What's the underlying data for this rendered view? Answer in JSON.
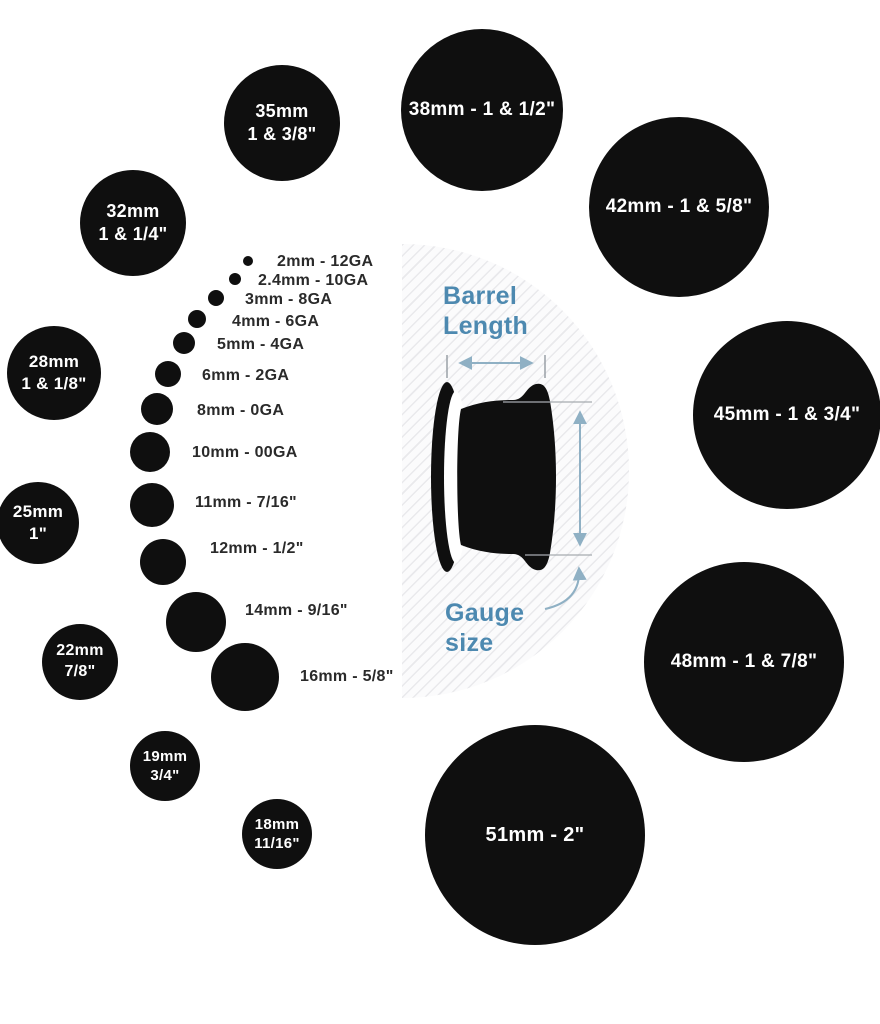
{
  "diagram": {
    "title": "plug gauge size chart",
    "colors": {
      "circle": "#0f0f0f",
      "label_text": "#2a2a2a",
      "accent_blue": "#4d89b0",
      "arrow_blue": "#8fb0c4",
      "measure_line": "#a6abb0",
      "hatch_line": "#e9e9ec"
    },
    "center": {
      "barrel_label": [
        "Barrel",
        "Length"
      ],
      "gauge_label": [
        "Gauge",
        "size"
      ]
    },
    "dot_items": [
      {
        "label": "2mm - 12GA",
        "dot": [
          248,
          261,
          5
        ],
        "text": [
          277,
          262
        ]
      },
      {
        "label": "2.4mm - 10GA",
        "dot": [
          235,
          279,
          6
        ],
        "text": [
          258,
          281
        ]
      },
      {
        "label": "3mm - 8GA",
        "dot": [
          216,
          298,
          8
        ],
        "text": [
          245,
          300
        ]
      },
      {
        "label": "4mm - 6GA",
        "dot": [
          197,
          319,
          9
        ],
        "text": [
          232,
          322
        ]
      },
      {
        "label": "5mm - 4GA",
        "dot": [
          184,
          343,
          11
        ],
        "text": [
          217,
          345
        ]
      },
      {
        "label": "6mm - 2GA",
        "dot": [
          168,
          374,
          13
        ],
        "text": [
          202,
          376
        ]
      },
      {
        "label": "8mm - 0GA",
        "dot": [
          157,
          409,
          16
        ],
        "text": [
          197,
          411
        ]
      },
      {
        "label": "10mm - 00GA",
        "dot": [
          150,
          452,
          20
        ],
        "text": [
          192,
          453
        ]
      },
      {
        "label": "11mm - 7/16\"",
        "dot": [
          152,
          505,
          22
        ],
        "text": [
          195,
          503
        ]
      },
      {
        "label": "12mm - 1/2\"",
        "dot": [
          163,
          562,
          23
        ],
        "text": [
          210,
          549
        ]
      },
      {
        "label": "14mm - 9/16\"",
        "dot": [
          196,
          622,
          30
        ],
        "text": [
          245,
          611
        ]
      },
      {
        "label": "16mm - 5/8\"",
        "dot": [
          245,
          677,
          34
        ],
        "text": [
          300,
          677
        ]
      }
    ],
    "circle_items": [
      {
        "id": "35mm",
        "lines": [
          "35mm",
          "1 & 3/8\""
        ],
        "c": [
          282,
          123,
          58
        ],
        "fs": 18
      },
      {
        "id": "38mm",
        "lines": [
          "38mm - 1 & 1/2\""
        ],
        "c": [
          482,
          110,
          81
        ],
        "fs": 19
      },
      {
        "id": "32mm",
        "lines": [
          "32mm",
          "1 & 1/4\""
        ],
        "c": [
          133,
          223,
          53
        ],
        "fs": 18
      },
      {
        "id": "42mm",
        "lines": [
          "42mm - 1 & 5/8\""
        ],
        "c": [
          679,
          207,
          90
        ],
        "fs": 19
      },
      {
        "id": "28mm",
        "lines": [
          "28mm",
          "1 & 1/8\""
        ],
        "c": [
          54,
          373,
          47
        ],
        "fs": 17
      },
      {
        "id": "45mm",
        "lines": [
          "45mm - 1 & 3/4\""
        ],
        "c": [
          787,
          415,
          94
        ],
        "fs": 19
      },
      {
        "id": "25mm",
        "lines": [
          "25mm",
          "1\""
        ],
        "c": [
          38,
          523,
          41
        ],
        "fs": 17
      },
      {
        "id": "48mm",
        "lines": [
          "48mm - 1 & 7/8\""
        ],
        "c": [
          744,
          662,
          100
        ],
        "fs": 19
      },
      {
        "id": "22mm",
        "lines": [
          "22mm",
          "7/8\""
        ],
        "c": [
          80,
          662,
          38
        ],
        "fs": 16
      },
      {
        "id": "19mm",
        "lines": [
          "19mm",
          "3/4\""
        ],
        "c": [
          165,
          766,
          35
        ],
        "fs": 15
      },
      {
        "id": "18mm",
        "lines": [
          "18mm",
          "11/16\""
        ],
        "c": [
          277,
          834,
          35
        ],
        "fs": 15
      },
      {
        "id": "51mm",
        "lines": [
          "51mm - 2\""
        ],
        "c": [
          535,
          835,
          110
        ],
        "fs": 20
      }
    ]
  }
}
